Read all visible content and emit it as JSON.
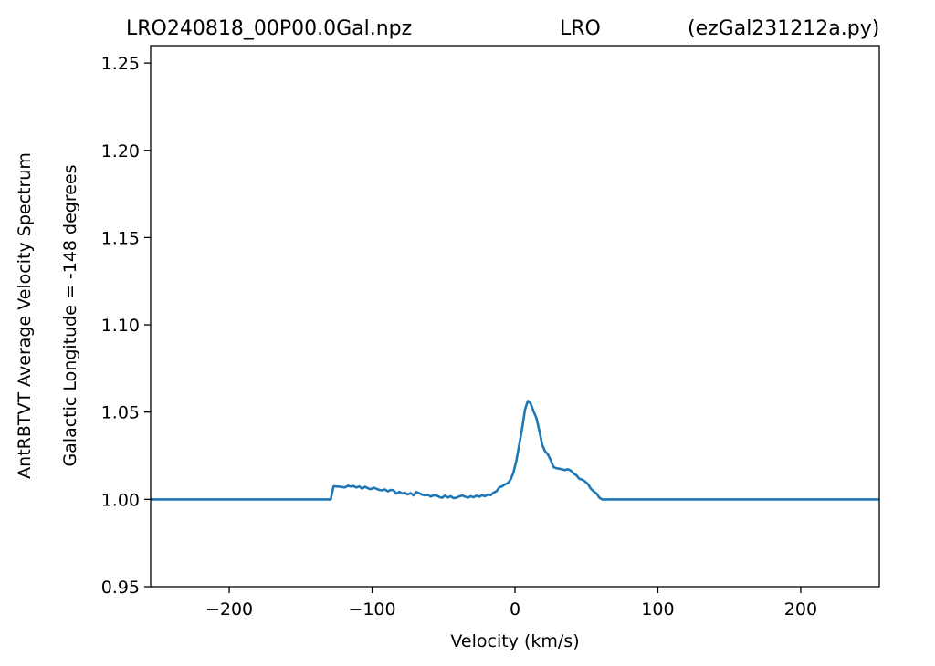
{
  "title": {
    "left": "LRO240818_00P00.0Gal.npz",
    "center": "LRO",
    "right": "(ezGal231212a.py)"
  },
  "chart_data": {
    "type": "line",
    "xlabel": "Velocity (km/s)",
    "ylabel_outer": "AntRBTVT Average Velocity Spectrum",
    "ylabel_inner": "Galactic Longitude = -148 degrees",
    "xlim": [
      -255,
      255
    ],
    "ylim": [
      0.95,
      1.26
    ],
    "xticks": [
      -200,
      -100,
      0,
      100,
      200
    ],
    "xtick_labels": [
      "−200",
      "−100",
      "0",
      "100",
      "200"
    ],
    "yticks": [
      0.95,
      1.0,
      1.05,
      1.1,
      1.15,
      1.2,
      1.25
    ],
    "ytick_labels": [
      "0.95",
      "1.00",
      "1.05",
      "1.10",
      "1.15",
      "1.20",
      "1.25"
    ],
    "grid": false,
    "line_color": "#1f77b4",
    "series": [
      {
        "x": [
          -255,
          -129,
          -127,
          -123,
          -119,
          -117,
          -115,
          -113,
          -111,
          -109,
          -107,
          -105,
          -103,
          -101,
          -99,
          -97,
          -95,
          -93,
          -91,
          -89,
          -87,
          -85,
          -83,
          -81,
          -79,
          -77,
          -75,
          -73,
          -71,
          -69,
          -67,
          -65,
          -63,
          -61,
          -59,
          -57,
          -55,
          -53,
          -51,
          -49,
          -47,
          -45,
          -43,
          -41,
          -39,
          -37,
          -35,
          -33,
          -31,
          -29,
          -27,
          -25,
          -23,
          -21,
          -19,
          -17,
          -15,
          -13,
          -11,
          -9,
          -7,
          -5,
          -3,
          -1,
          1,
          3,
          5,
          7,
          9,
          11,
          13,
          15,
          17,
          19,
          21,
          23,
          25,
          27,
          29,
          31,
          33,
          35,
          37,
          39,
          41,
          43,
          45,
          47,
          49,
          51,
          53,
          55,
          57,
          59,
          61,
          255
        ],
        "y": [
          1.0,
          1.0,
          1.0075,
          1.0073,
          1.0068,
          1.0078,
          1.0074,
          1.0076,
          1.0068,
          1.0074,
          1.0062,
          1.0072,
          1.0064,
          1.0058,
          1.0067,
          1.0061,
          1.0054,
          1.0052,
          1.0057,
          1.0046,
          1.0054,
          1.0052,
          1.0032,
          1.0043,
          1.0034,
          1.0038,
          1.0028,
          1.0036,
          1.0023,
          1.0042,
          1.0035,
          1.0027,
          1.0023,
          1.0026,
          1.0016,
          1.0023,
          1.0022,
          1.0014,
          1.0009,
          1.0021,
          1.0011,
          1.0018,
          1.0007,
          1.0009,
          1.0017,
          1.0022,
          1.0016,
          1.001,
          1.0018,
          1.0012,
          1.0021,
          1.0015,
          1.0024,
          1.0018,
          1.0028,
          1.0024,
          1.0039,
          1.0046,
          1.0068,
          1.0075,
          1.0086,
          1.0093,
          1.0115,
          1.0155,
          1.0225,
          1.0315,
          1.0405,
          1.0515,
          1.0565,
          1.0548,
          1.0505,
          1.0465,
          1.0395,
          1.0315,
          1.0275,
          1.0258,
          1.0225,
          1.0185,
          1.0178,
          1.0176,
          1.0172,
          1.0168,
          1.0173,
          1.0165,
          1.0148,
          1.0138,
          1.0118,
          1.0113,
          1.0102,
          1.0088,
          1.0062,
          1.0046,
          1.0034,
          1.001,
          1.0,
          1.0
        ]
      }
    ]
  }
}
